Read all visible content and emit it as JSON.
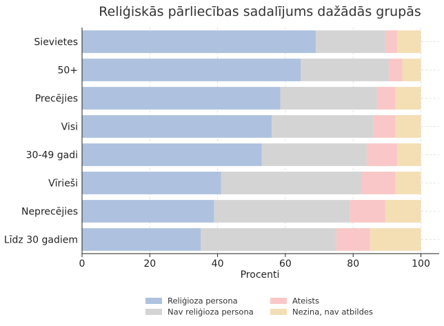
{
  "chart_data": {
    "type": "bar",
    "orientation": "horizontal",
    "stacked": true,
    "title": "Reliģiskās pārliecības sadalījums dažādās grupās",
    "xlabel": "Procenti",
    "ylabel": "",
    "xlim": [
      0,
      100
    ],
    "xticks": [
      "0",
      "20",
      "40",
      "60",
      "80",
      "100"
    ],
    "grid": true,
    "legend_position": "bottom",
    "categories": [
      "Sievietes",
      "50+",
      "Precējies",
      "Visi",
      "30-49 gadi",
      "Vīrieši",
      "Neprecējies",
      "Līdz 30 gadiem"
    ],
    "series": [
      {
        "name": "Reliģioza persona",
        "color": "#aec2df",
        "values": [
          69,
          64.5,
          58.5,
          56,
          53,
          41,
          39,
          35
        ]
      },
      {
        "name": "Nav reliģioza persona",
        "color": "#d4d4d4",
        "values": [
          20.5,
          26,
          28.5,
          30,
          31,
          41.5,
          40,
          40
        ]
      },
      {
        "name": "Ateists",
        "color": "#f9c7c7",
        "values": [
          3.5,
          4,
          5.5,
          6.5,
          9,
          10,
          10.5,
          10
        ]
      },
      {
        "name": "Nezina, nav atbildes",
        "color": "#f4deb4",
        "values": [
          7,
          5.5,
          7.5,
          7.5,
          7,
          7.5,
          10.5,
          15
        ]
      }
    ]
  }
}
